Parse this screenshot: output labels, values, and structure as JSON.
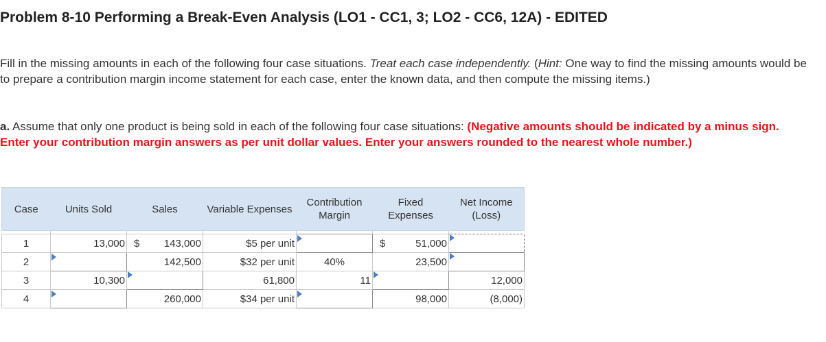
{
  "title": "Problem 8-10 Performing a Break-Even Analysis (LO1 - CC1, 3; LO2 - CC6, 12A) - EDITED",
  "instructions": {
    "line1_start": "Fill in the missing amounts in each of the following four case situations. ",
    "line1_italic": "Treat each case independently.",
    "line1_hint_open": " (",
    "line1_hint_label": "Hint:",
    "line1_rest": " One way to find the missing amounts would be to prepare a contribution margin income statement for each case, enter the known data, and then compute the missing items.)"
  },
  "part_a": {
    "label": "a.",
    "text": " Assume that only one product is being sold in each of the following four case situations: ",
    "red_text": "(Negative amounts should be indicated by a minus sign. Enter your contribution margin answers as per unit dollar values. Enter your answers rounded to the nearest whole number.)"
  },
  "table": {
    "headers": [
      "Case",
      "Units Sold",
      "Sales",
      "Variable Expenses",
      "Contribution Margin",
      "Fixed Expenses",
      "Net Income (Loss)"
    ],
    "currency": "$",
    "rows": [
      {
        "case": "1",
        "units": "13,000",
        "sales": "143,000",
        "variable": "$5 per unit",
        "contribution": "",
        "fixed": "51,000",
        "net": ""
      },
      {
        "case": "2",
        "units": "",
        "sales": "142,500",
        "variable": "$32 per unit",
        "contribution": "40%",
        "fixed": "23,500",
        "net": ""
      },
      {
        "case": "3",
        "units": "10,300",
        "sales": "",
        "variable": "61,800",
        "contribution": "11",
        "fixed": "",
        "net": "12,000"
      },
      {
        "case": "4",
        "units": "",
        "sales": "260,000",
        "variable": "$34 per unit",
        "contribution": "",
        "fixed": "98,000",
        "net": "(8,000)"
      }
    ]
  },
  "colors": {
    "header_bg": "#d6e3f3",
    "flag": "#4a7fc1",
    "red_text": "#e8131b"
  }
}
